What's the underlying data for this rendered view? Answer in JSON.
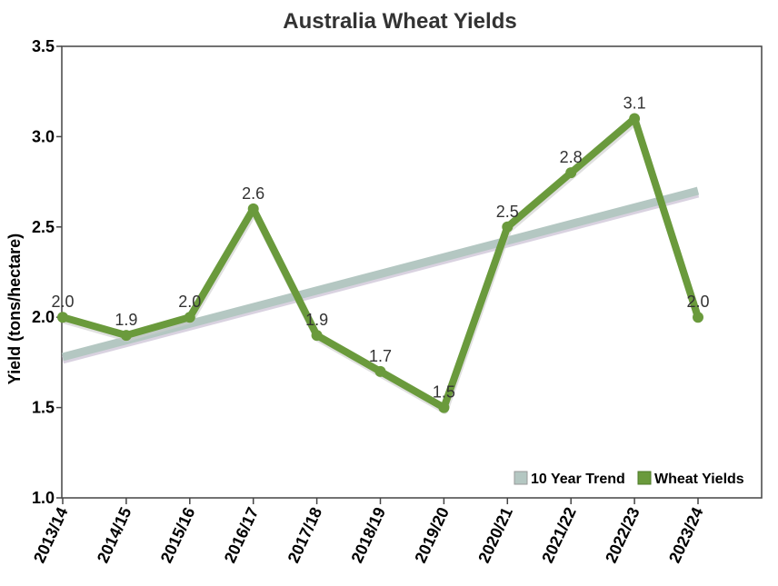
{
  "chart_data": {
    "type": "line",
    "title": "Australia Wheat Yields",
    "xlabel": "",
    "ylabel": "Yield (tons/hectare)",
    "categories": [
      "2013/14",
      "2014/15",
      "2015/16",
      "2016/17",
      "2017/18",
      "2018/19",
      "2019/20",
      "2020/21",
      "2021/22",
      "2022/23",
      "2023/24"
    ],
    "ylim": [
      1.0,
      3.5
    ],
    "yticks": [
      "1.0",
      "1.5",
      "2.0",
      "2.5",
      "3.0",
      "3.5"
    ],
    "grid": false,
    "legend_position": "bottom-right",
    "series": [
      {
        "name": "10 Year Trend",
        "color": "#b4c7c2",
        "values": [
          1.78,
          null,
          null,
          null,
          null,
          null,
          null,
          null,
          null,
          null,
          2.7
        ],
        "range_x": [
          "2013/14",
          "2023/24"
        ]
      },
      {
        "name": "Wheat Yields",
        "color": "#6a9a3c",
        "values": [
          2.0,
          1.9,
          2.0,
          2.6,
          1.9,
          1.7,
          1.5,
          2.5,
          2.8,
          3.1,
          2.0
        ],
        "data_labels": [
          "2.0",
          "1.9",
          "2.0",
          "2.6",
          "1.9",
          "1.7",
          "1.5",
          "2.5",
          "2.8",
          "3.1",
          "2.0"
        ]
      }
    ]
  }
}
